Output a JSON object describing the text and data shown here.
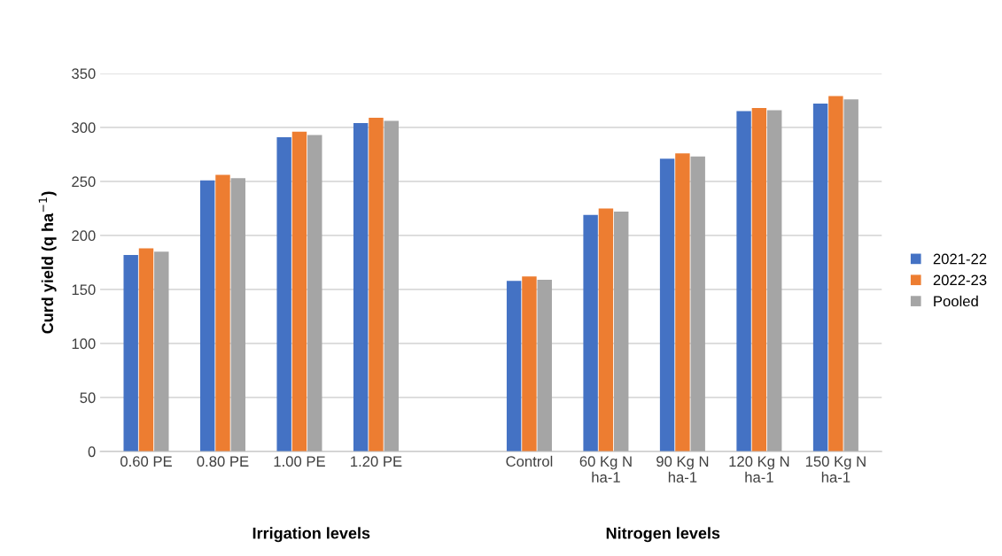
{
  "chart_data": {
    "type": "bar",
    "ylabel": "Curd yield (q ha$^{−1}$)",
    "categories": [
      "0.60 PE",
      "0.80 PE",
      "1.00 PE",
      "1.20 PE",
      null,
      "Control",
      "60 Kg N\nha-1",
      "90 Kg N\nha-1",
      "120 Kg N\nha-1",
      "150 Kg N\nha-1"
    ],
    "series": [
      {
        "name": "2021-22",
        "color": "#4472c4",
        "values": [
          182,
          251,
          291,
          304,
          null,
          158,
          219,
          271,
          315,
          322
        ]
      },
      {
        "name": "2022-23",
        "color": "#ed7d31",
        "values": [
          188,
          256,
          296,
          309,
          null,
          162,
          225,
          276,
          318,
          329
        ]
      },
      {
        "name": "Pooled",
        "color": "#a5a5a5",
        "values": [
          185,
          253,
          293,
          306,
          null,
          159,
          222,
          273,
          316,
          326
        ]
      }
    ],
    "ylim": [
      0,
      350
    ],
    "yticks": [
      0,
      50,
      100,
      150,
      200,
      250,
      300,
      350
    ],
    "grid": "y",
    "legend": "right",
    "annotations": [
      "Irrigation levels",
      "Nitrogen levels"
    ]
  }
}
